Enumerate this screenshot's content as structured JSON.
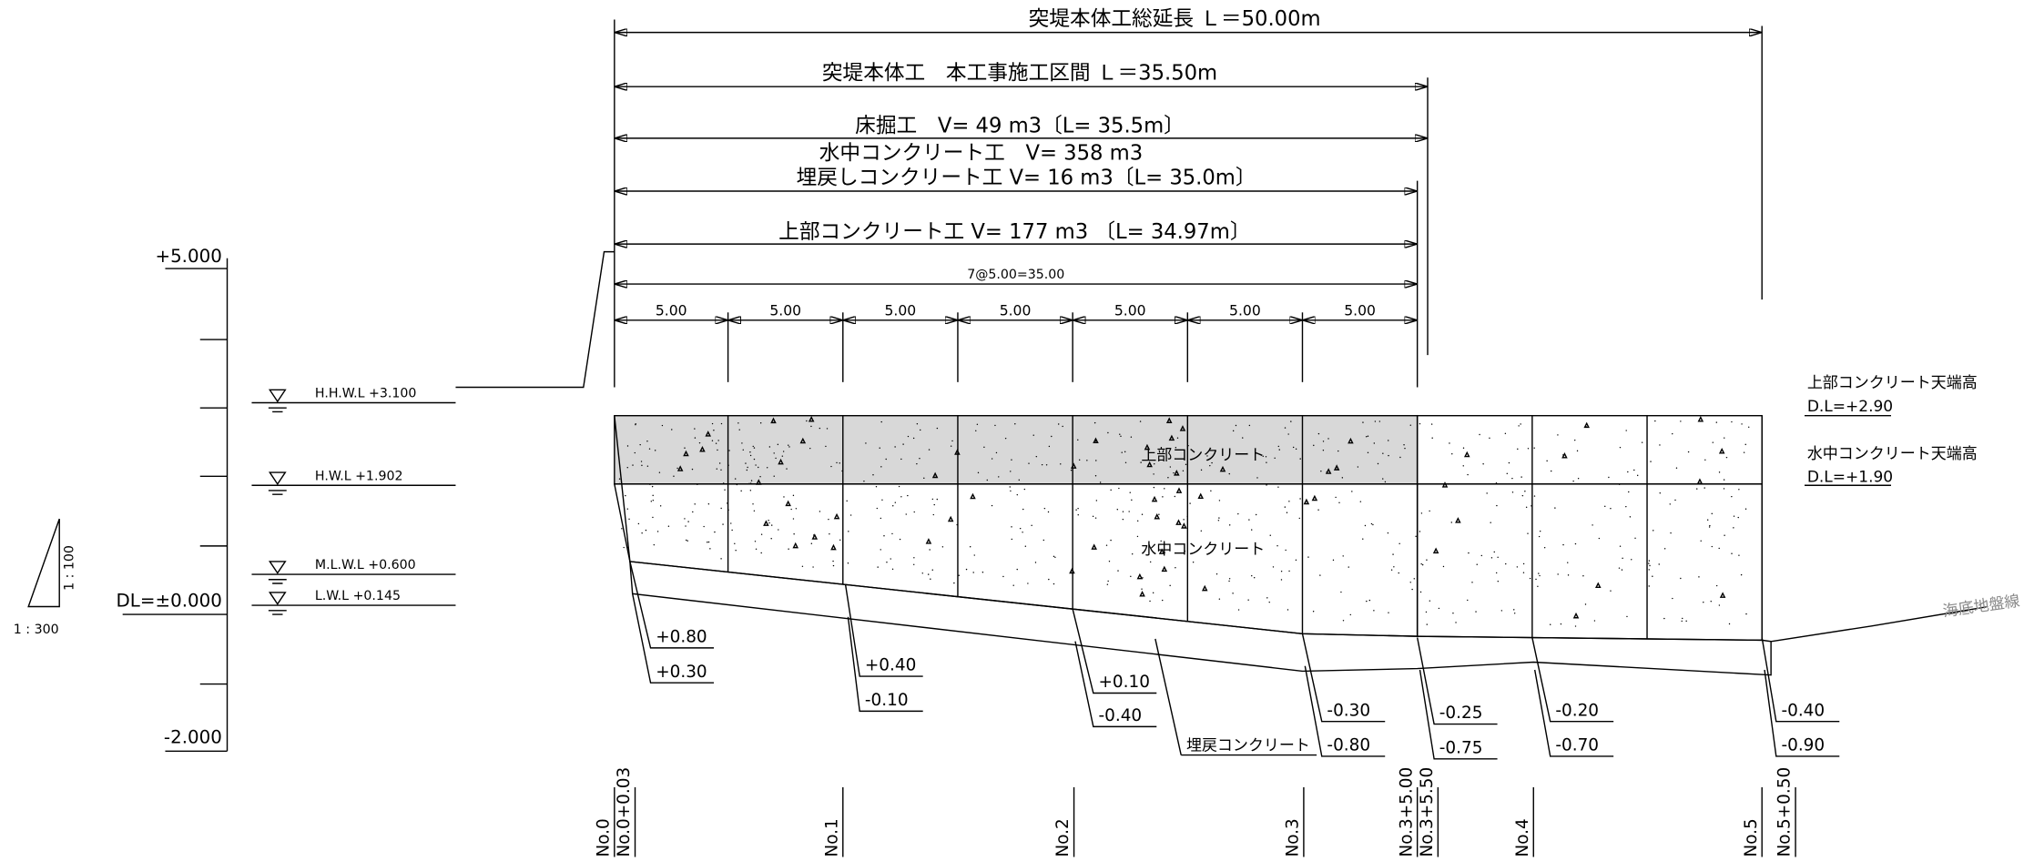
{
  "dimensions": [
    "突堤本体工総延長 Ｌ＝50.00m",
    "突堤本体工　本工事施工区間 Ｌ＝35.50m",
    "床掘工　V= 49 m3〔L= 35.5m〕",
    "水中コンクリート工　V= 358 m3",
    "埋戻しコンクリート工 V= 16 m3〔L= 35.0m〕",
    "上部コンクリート工 V= 177 m3 〔L= 34.97m〕"
  ],
  "total_span": "7@5.00=35.00",
  "span_labels": [
    "5.00",
    "5.00",
    "5.00",
    "5.00",
    "5.00",
    "5.00",
    "5.00"
  ],
  "scale_bar": {
    "top": "+5.000",
    "datum": "DL=±0.000",
    "bottom": "-2.000"
  },
  "water_levels": [
    "H.H.W.L +3.100",
    "H.W.L +1.902",
    "M.L.W.L +0.600",
    "L.W.L +0.145"
  ],
  "ratio": {
    "vertical": "1 : 100",
    "horizontal": "1 : 300"
  },
  "right_labels": [
    "上部コンクリート天端高",
    "D.L=+2.90",
    "水中コンクリート天端高",
    "D.L=+1.90"
  ],
  "section_labels": {
    "upper": "上部コンクリート",
    "underwater": "水中コンクリート",
    "backfill": "埋戻コンクリート",
    "seabed": "海底地盤線"
  },
  "elevations": [
    {
      "top": "+0.80",
      "bottom": "+0.30"
    },
    {
      "top": "+0.40",
      "bottom": "-0.10"
    },
    {
      "top": "+0.10",
      "bottom": "-0.40"
    },
    {
      "top": "-0.30",
      "bottom": "-0.80"
    },
    {
      "top": "-0.25",
      "bottom": "-0.75"
    },
    {
      "top": "-0.20",
      "bottom": "-0.70"
    },
    {
      "top": "-0.40",
      "bottom": "-0.90"
    }
  ],
  "stations": [
    "No.0",
    "No.0+0.03",
    "No.1",
    "No.2",
    "No.3",
    "No.3+5.00",
    "No.3+5.50",
    "No.4",
    "No.5",
    "No.5+0.50"
  ]
}
